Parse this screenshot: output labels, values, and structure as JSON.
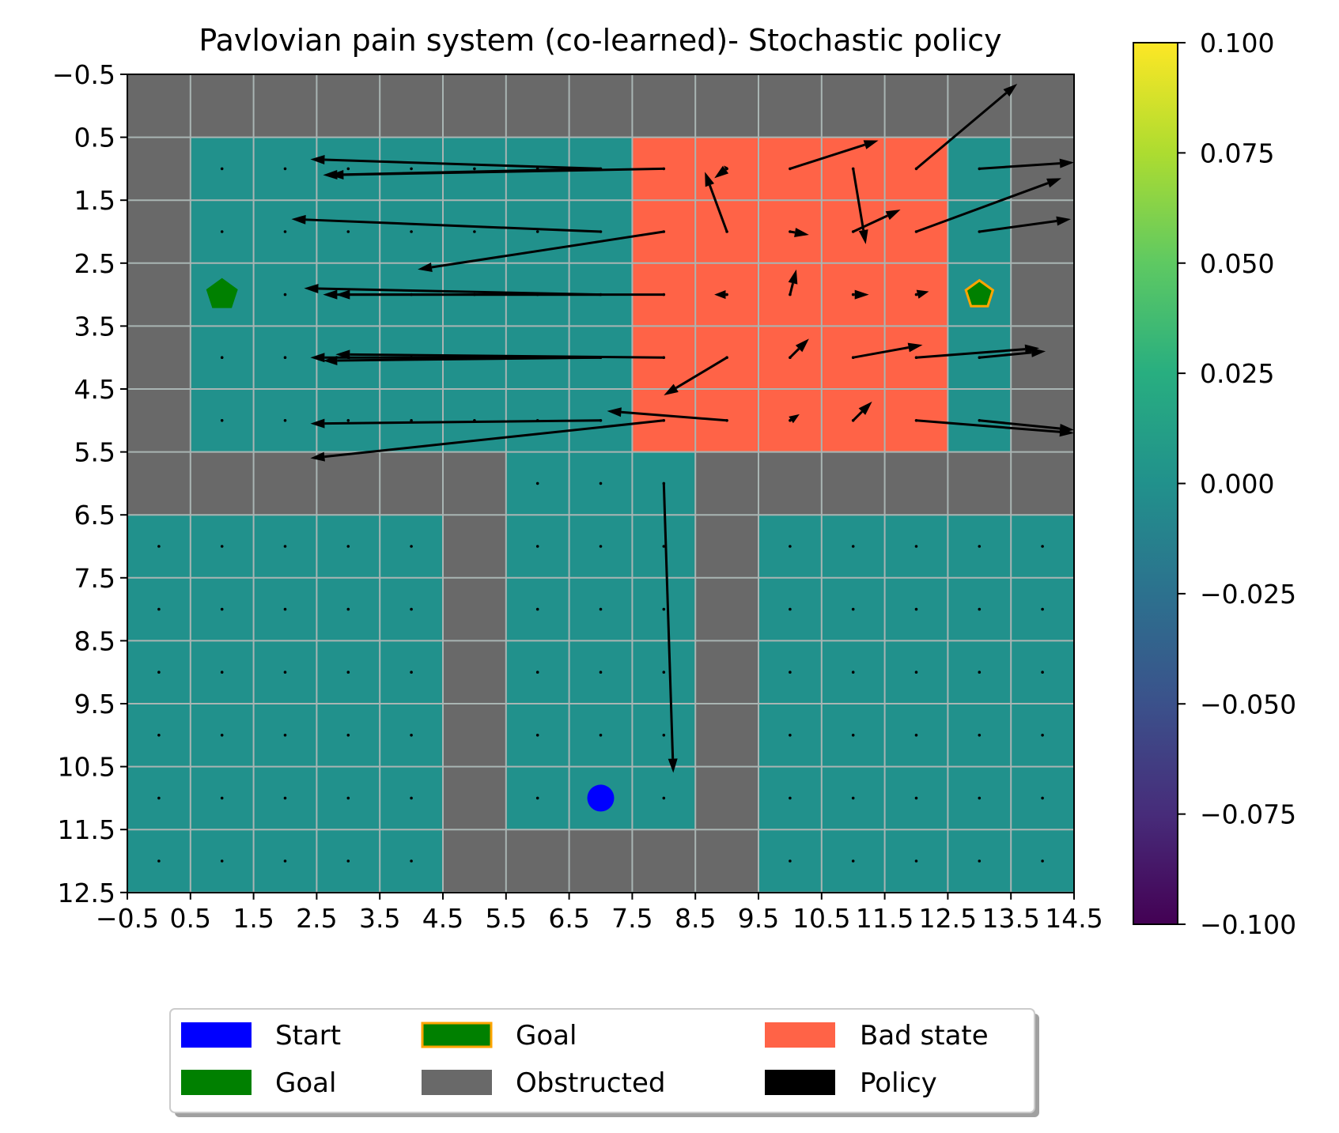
{
  "chart_data": {
    "type": "heatmap",
    "title": "Pavlovian pain system (co-learned)- Stochastic policy",
    "grid": true,
    "xlim": [
      -0.5,
      14.5
    ],
    "ylim": [
      12.5,
      -0.5
    ],
    "xticks": [
      "−0.5",
      "0.5",
      "1.5",
      "2.5",
      "3.5",
      "4.5",
      "5.5",
      "6.5",
      "7.5",
      "8.5",
      "9.5",
      "10.5",
      "11.5",
      "12.5",
      "13.5",
      "14.5"
    ],
    "yticks": [
      "−0.5",
      "0.5",
      "1.5",
      "2.5",
      "3.5",
      "4.5",
      "5.5",
      "6.5",
      "7.5",
      "8.5",
      "9.5",
      "10.5",
      "11.5",
      "12.5"
    ],
    "colorbar": {
      "min": -0.1,
      "max": 0.1,
      "ticks": [
        "0.100",
        "0.075",
        "0.050",
        "0.025",
        "0.000",
        "−0.025",
        "−0.050",
        "−0.075",
        "−0.100"
      ],
      "colormap": "viridis"
    },
    "colors": {
      "free": "#21918c",
      "obstructed": "#696969",
      "bad": "#ff6347",
      "grid_line": "#a9b5b3",
      "start": "#0000ff",
      "goal": "#008000",
      "goal_edge": "#ffa500",
      "policy": "#000000"
    },
    "cells": [
      "OOOOOOOOOOOOOOO",
      "OFFFFFFFBBBBBFO",
      "OFFFFFFFBBBBBFO",
      "OFFFFFFFBBBBBFO",
      "OFFFFFFFBBBBBFO",
      "OFFFFFFFBBBBBFO",
      "OOOOOOFFFOOOOOO",
      "FFFFFOFFFOFFFFF",
      "FFFFFOFFFOFFFFF",
      "FFFFFOFFFOFFFFF",
      "FFFFFOFFFOFFFFF",
      "FFFFFOFFFOFFFFF",
      "FFFFFOOOOOFFFFF"
    ],
    "start": [
      7,
      11
    ],
    "goals": [
      {
        "x": 1,
        "y": 3,
        "style": "filled"
      },
      {
        "x": 13,
        "y": 3,
        "style": "outlined"
      }
    ],
    "policy_arrows": [
      {
        "x": 7,
        "y": 1,
        "dx": -4.6,
        "dy": -0.15
      },
      {
        "x": 7,
        "y": 1,
        "dx": -4.4,
        "dy": 0.1
      },
      {
        "x": 8,
        "y": 1,
        "dx": -5.3,
        "dy": 0.1
      },
      {
        "x": 9,
        "y": 1,
        "dx": -0.2,
        "dy": 0.15
      },
      {
        "x": 9,
        "y": 1,
        "dx": -0.05,
        "dy": -0.05
      },
      {
        "x": 10,
        "y": 1,
        "dx": 1.4,
        "dy": -0.45
      },
      {
        "x": 11,
        "y": 1,
        "dx": 0.2,
        "dy": 1.2
      },
      {
        "x": 12,
        "y": 1,
        "dx": 1.6,
        "dy": -1.35
      },
      {
        "x": 13,
        "y": 1,
        "dx": 1.5,
        "dy": -0.1
      },
      {
        "x": 7,
        "y": 2,
        "dx": -4.9,
        "dy": -0.2
      },
      {
        "x": 8,
        "y": 2,
        "dx": -3.9,
        "dy": 0.6
      },
      {
        "x": 9,
        "y": 2,
        "dx": -0.35,
        "dy": -0.95
      },
      {
        "x": 10,
        "y": 2,
        "dx": 0.3,
        "dy": 0.05
      },
      {
        "x": 11,
        "y": 2,
        "dx": 0.75,
        "dy": -0.35
      },
      {
        "x": 12,
        "y": 2,
        "dx": 2.3,
        "dy": -0.85
      },
      {
        "x": 13,
        "y": 2,
        "dx": 1.45,
        "dy": -0.2
      },
      {
        "x": 7,
        "y": 3,
        "dx": -4.7,
        "dy": -0.1
      },
      {
        "x": 7,
        "y": 3,
        "dx": -4.4,
        "dy": 0
      },
      {
        "x": 8,
        "y": 3,
        "dx": -5.2,
        "dy": 0
      },
      {
        "x": 9,
        "y": 3,
        "dx": -0.2,
        "dy": 0
      },
      {
        "x": 10,
        "y": 3,
        "dx": 0.1,
        "dy": -0.4
      },
      {
        "x": 11,
        "y": 3,
        "dx": 0.25,
        "dy": 0
      },
      {
        "x": 12,
        "y": 3,
        "dx": 0.2,
        "dy": -0.05
      },
      {
        "x": 7,
        "y": 4,
        "dx": -4.6,
        "dy": 0
      },
      {
        "x": 7,
        "y": 4,
        "dx": -4.4,
        "dy": 0.05
      },
      {
        "x": 8,
        "y": 4,
        "dx": -5.2,
        "dy": -0.05
      },
      {
        "x": 9,
        "y": 4,
        "dx": -1,
        "dy": 0.6
      },
      {
        "x": 10,
        "y": 4,
        "dx": 0.3,
        "dy": -0.3
      },
      {
        "x": 11,
        "y": 4,
        "dx": 1.1,
        "dy": -0.2
      },
      {
        "x": 12,
        "y": 4,
        "dx": 1.95,
        "dy": -0.15
      },
      {
        "x": 13,
        "y": 4,
        "dx": 1.05,
        "dy": -0.1
      },
      {
        "x": 7,
        "y": 5,
        "dx": -4.6,
        "dy": 0.05
      },
      {
        "x": 8,
        "y": 5,
        "dx": -5.6,
        "dy": 0.6
      },
      {
        "x": 9,
        "y": 5,
        "dx": -1.9,
        "dy": -0.15
      },
      {
        "x": 10,
        "y": 5,
        "dx": 0.15,
        "dy": -0.1
      },
      {
        "x": 11,
        "y": 5,
        "dx": 0.3,
        "dy": -0.3
      },
      {
        "x": 12,
        "y": 5,
        "dx": 2.5,
        "dy": 0.2
      },
      {
        "x": 13,
        "y": 5,
        "dx": 1.5,
        "dy": 0.15
      },
      {
        "x": 8,
        "y": 6,
        "dx": 0.15,
        "dy": 4.6
      }
    ],
    "legend": {
      "placement": "bottom",
      "entries": [
        {
          "label": "Start",
          "swatch": "start"
        },
        {
          "label": "Goal",
          "swatch": "goal"
        },
        {
          "label": "Goal",
          "swatch": "goal-outlined"
        },
        {
          "label": "Obstructed",
          "swatch": "obstructed"
        },
        {
          "label": "Bad state",
          "swatch": "bad"
        },
        {
          "label": "Policy",
          "swatch": "policy"
        }
      ]
    }
  }
}
